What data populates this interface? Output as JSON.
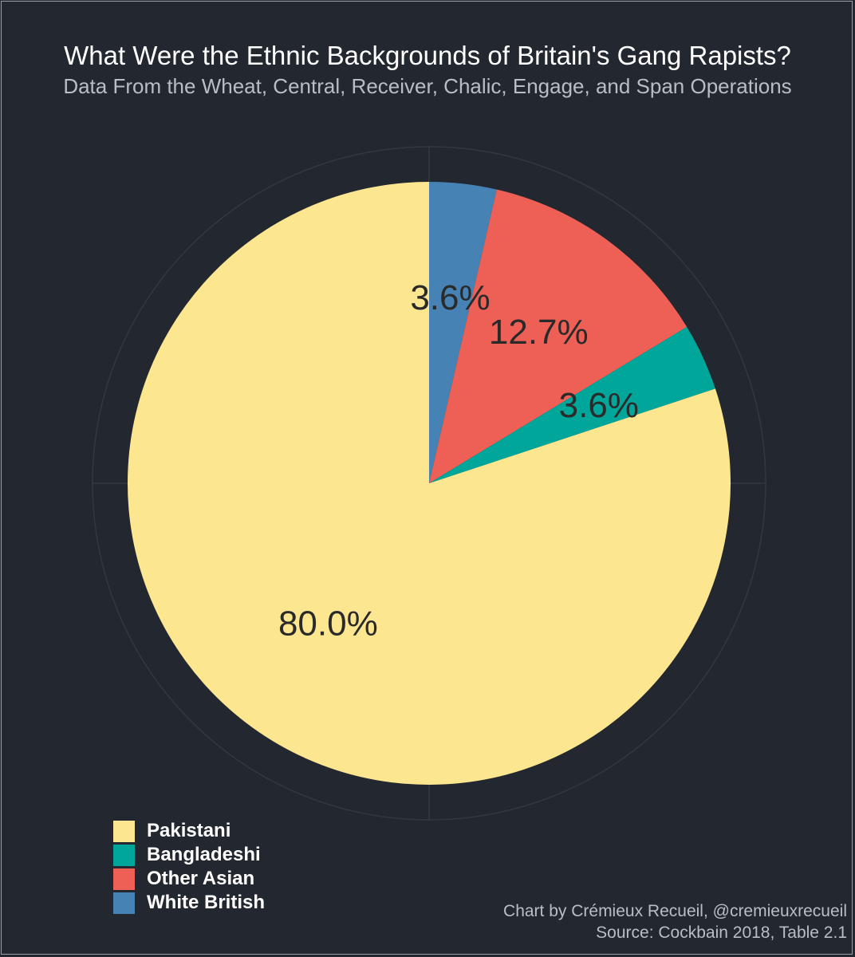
{
  "chart_data": {
    "type": "pie",
    "title": "What Were the Ethnic Backgrounds of Britain's Gang Rapists?",
    "subtitle": "Data From the Wheat, Central, Receiver, Chalic, Engage, and Span Operations",
    "categories": [
      "White British",
      "Other Asian",
      "Bangladeshi",
      "Pakistani"
    ],
    "values": [
      3.6,
      12.7,
      3.6,
      80.0
    ],
    "labels": [
      "3.6%",
      "12.7%",
      "3.6%",
      "80.0%"
    ],
    "colors": [
      "#4682B4",
      "#EE6055",
      "#00A699",
      "#FCE690"
    ],
    "legend": {
      "position": "bottom-left",
      "entries": [
        {
          "label": "Pakistani",
          "color": "#FCE690"
        },
        {
          "label": "Bangladeshi",
          "color": "#00A699"
        },
        {
          "label": "Other Asian",
          "color": "#EE6055"
        },
        {
          "label": "White British",
          "color": "#4682B4"
        }
      ]
    },
    "grid": true
  },
  "caption": {
    "line1": "Chart by Crémieux Recueil, @cremieuxrecueil",
    "line2": "Source: Cockbain 2018, Table 2.1"
  },
  "colors": {
    "background": "#232830",
    "grid": "#33383f",
    "label_text": "#2a2a2a"
  }
}
